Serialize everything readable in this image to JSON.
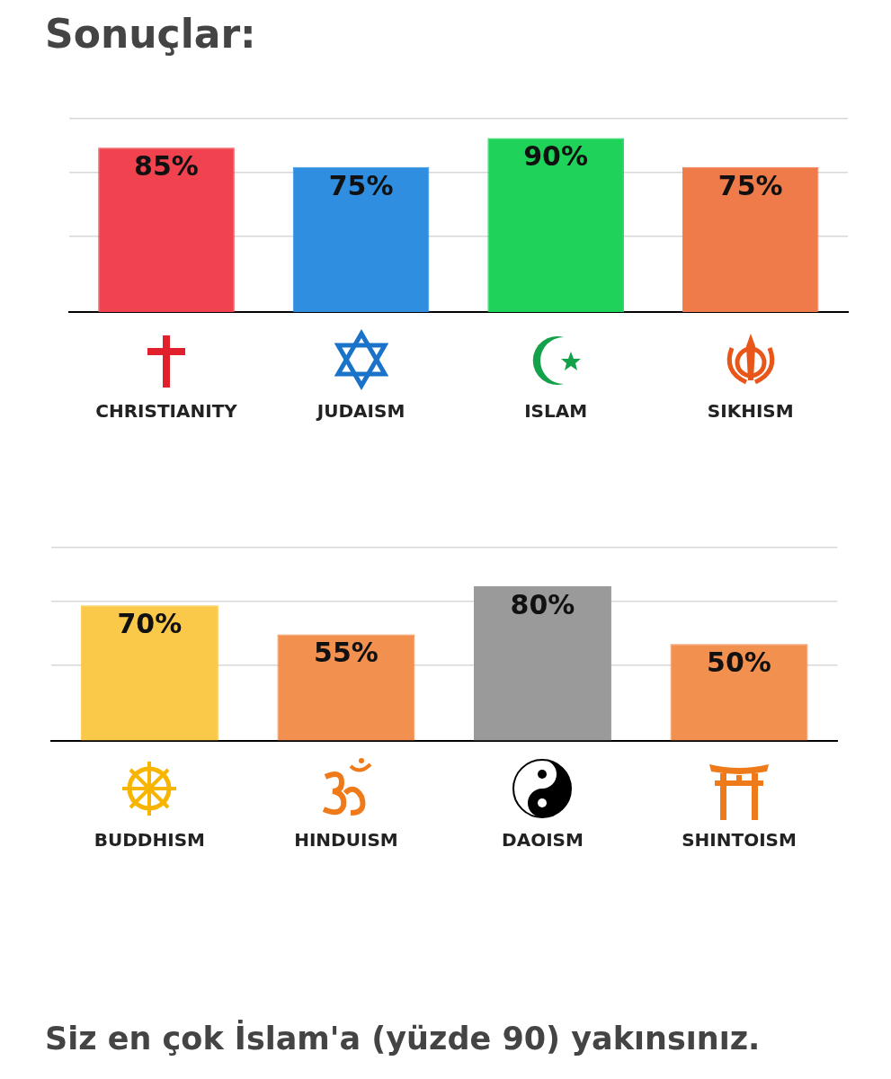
{
  "chart_data": [
    {
      "type": "bar",
      "title": "Sonuçlar:",
      "categories": [
        "CHRISTIANITY",
        "JUDAISM",
        "ISLAM",
        "SIKHISM"
      ],
      "values": [
        85,
        75,
        90,
        75
      ],
      "value_labels": [
        "85%",
        "75%",
        "90%",
        "75%"
      ],
      "colors": [
        "#f0434f",
        "#2f8ee0",
        "#1fd35a",
        "#ef7a4a"
      ],
      "ylim": [
        0,
        100
      ],
      "yticks": [
        {
          "value": 39,
          "label": null
        },
        {
          "value": 72,
          "label": null
        },
        {
          "value": 100,
          "label": null
        }
      ],
      "grid": "y",
      "tick_labels": "x"
    },
    {
      "type": "bar",
      "categories": [
        "BUDDHISM",
        "HINDUISM",
        "DAOISM",
        "SHINTOISM"
      ],
      "values": [
        70,
        55,
        80,
        50
      ],
      "value_labels": [
        "70%",
        "55%",
        "80%",
        "50%"
      ],
      "colors": [
        "#fbc94a",
        "#f29050",
        "#9a9a9a",
        "#f29050"
      ],
      "ylim": [
        0,
        100
      ],
      "yticks": [
        {
          "value": 39,
          "label": null
        },
        {
          "value": 72,
          "label": null
        },
        {
          "value": 100,
          "label": null
        }
      ],
      "grid": "y",
      "tick_labels": "x",
      "annotations": [
        "Siz en çok İslam'a (yüzde 90) yakınsınız."
      ]
    }
  ]
}
